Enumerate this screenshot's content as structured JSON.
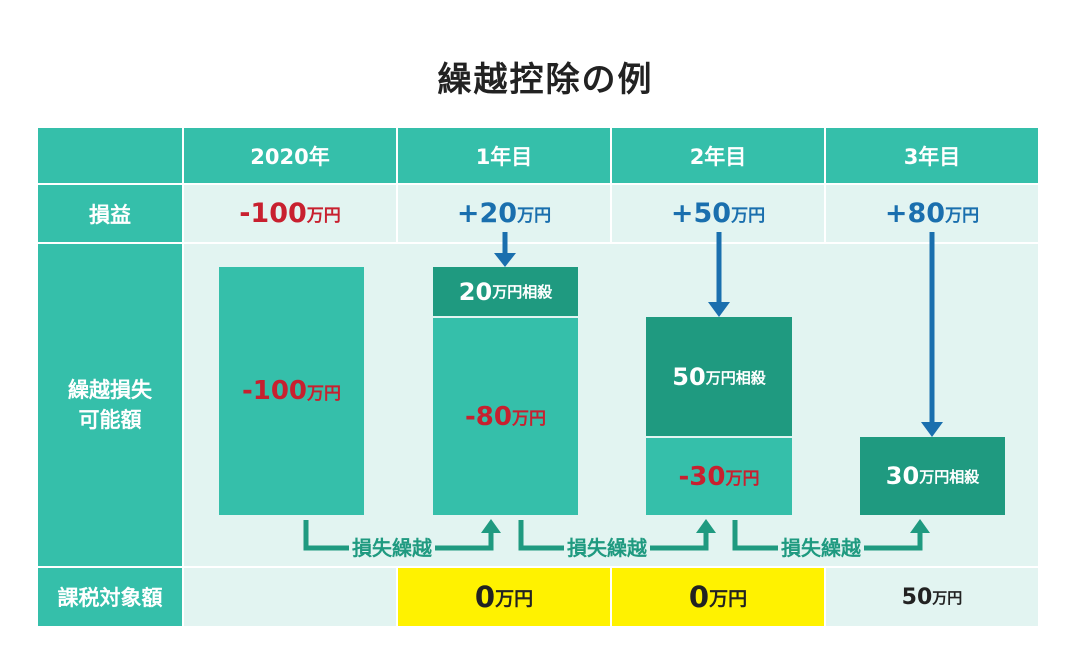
{
  "title": "繰越控除の例",
  "header": {
    "corner": "",
    "cols": [
      "2020年",
      "1年目",
      "2年目",
      "3年目"
    ]
  },
  "rows": {
    "profit": "損益",
    "loss_line1": "繰越損失",
    "loss_line2": "可能額",
    "taxable": "課税対象額"
  },
  "profit": [
    {
      "num": "-100",
      "unit": "万円"
    },
    {
      "num": "+20",
      "unit": "万円"
    },
    {
      "num": "+50",
      "unit": "万円"
    },
    {
      "num": "+80",
      "unit": "万円"
    }
  ],
  "boxes": {
    "y2020": {
      "num": "-100",
      "unit": "万円"
    },
    "y1_offset": {
      "num": "20",
      "unit": "万円相殺"
    },
    "y1_remain": {
      "num": "-80",
      "unit": "万円"
    },
    "y2_offset": {
      "num": "50",
      "unit": "万円相殺"
    },
    "y2_remain": {
      "num": "-30",
      "unit": "万円"
    },
    "y3_offset": {
      "num": "30",
      "unit": "万円相殺"
    }
  },
  "carry_label": "損失繰越",
  "taxable": [
    {
      "num": "",
      "unit": ""
    },
    {
      "num": "0",
      "unit": "万円"
    },
    {
      "num": "0",
      "unit": "万円"
    },
    {
      "num": "50",
      "unit": "万円"
    }
  ],
  "colors": {
    "header": "#35bfaa",
    "light": "#e2f4f1",
    "dark_teal": "#1f9a80",
    "loss_red": "#c8202f",
    "profit_blue": "#1a6fae",
    "highlight": "#fff200"
  }
}
